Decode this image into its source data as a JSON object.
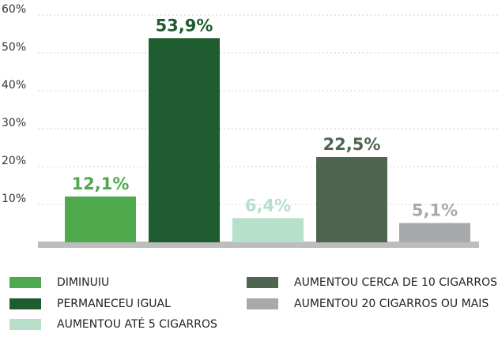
{
  "chart_data": {
    "type": "bar",
    "categories": [
      "DIMINUIU",
      "PERMANECEU IGUAL",
      "AUMENTOU ATÉ 5 CIGARROS",
      "AUMENTOU CERCA DE 10 CIGARROS",
      "AUMENTOU 20 CIGARROS OU MAIS"
    ],
    "values": [
      12.1,
      53.9,
      6.4,
      22.5,
      5.1
    ],
    "value_labels": [
      "12,1%",
      "53,9%",
      "6,4%",
      "22,5%",
      "5,1%"
    ],
    "colors": [
      "#4ea84c",
      "#1f5c2f",
      "#b6e0c9",
      "#4e6650",
      "#a8a9aa"
    ],
    "ylim": [
      0,
      60
    ],
    "yticks": [
      {
        "value": 10,
        "label": "10%"
      },
      {
        "value": 20,
        "label": "20%"
      },
      {
        "value": 30,
        "label": "30%"
      },
      {
        "value": 40,
        "label": "40%"
      },
      {
        "value": 50,
        "label": "50%"
      },
      {
        "value": 60,
        "label": "60%"
      }
    ],
    "grid": true
  }
}
